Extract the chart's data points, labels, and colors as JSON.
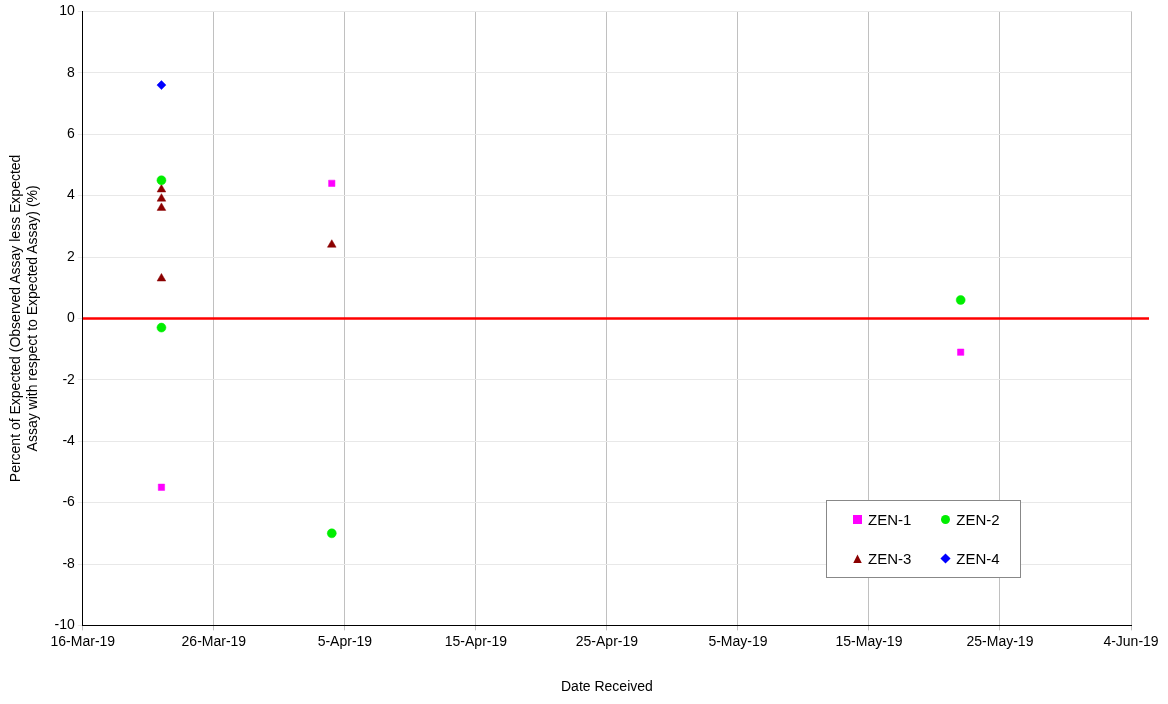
{
  "chart_data": {
    "type": "scatter",
    "xlabel": "Date Received",
    "ylabel": "Percent of Expected (Observed Assay less Expected Assay with respect to Expected Assay) (%)",
    "xlim": [
      "--03-16",
      "--06-04"
    ],
    "xticks": [
      {
        "value": "--03-16",
        "label": "16-Mar-19"
      },
      {
        "value": "--03-26",
        "label": "26-Mar-19"
      },
      {
        "value": "--04-05",
        "label": "5-Apr-19"
      },
      {
        "value": "--04-15",
        "label": "15-Apr-19"
      },
      {
        "value": "--04-25",
        "label": "25-Apr-19"
      },
      {
        "value": "--05-05",
        "label": "5-May-19"
      },
      {
        "value": "--05-15",
        "label": "15-May-19"
      },
      {
        "value": "--05-25",
        "label": "25-May-19"
      },
      {
        "value": "--06-04",
        "label": "4-Jun-19"
      }
    ],
    "ylim": [
      -10,
      10
    ],
    "yticks": [
      -10,
      -8,
      -6,
      -4,
      -2,
      0,
      2,
      4,
      6,
      8,
      10
    ],
    "grid": true,
    "legend": "bottom right",
    "ref_lines": [
      {
        "axis": "y",
        "value": 0,
        "color": "#ff0000"
      }
    ],
    "series": [
      {
        "name": "ZEN-1",
        "color": "#ff00ff",
        "marker": "square",
        "x": [
          "--03-22",
          "--04-04",
          "--05-22"
        ],
        "values": [
          -5.5,
          4.4,
          -1.1
        ]
      },
      {
        "name": "ZEN-2",
        "color": "#00ee00",
        "marker": "circle",
        "x": [
          "--03-22",
          "--03-22",
          "--04-04",
          "--05-22"
        ],
        "values": [
          4.5,
          -0.3,
          -7.0,
          0.6
        ]
      },
      {
        "name": "ZEN-3",
        "color": "#8b0000",
        "marker": "triangle",
        "x": [
          "--03-22",
          "--03-22",
          "--03-22",
          "--03-22",
          "--04-04"
        ],
        "values": [
          4.2,
          3.9,
          3.6,
          1.3,
          2.4
        ]
      },
      {
        "name": "ZEN-4",
        "color": "#0000ff",
        "marker": "diamond",
        "x": [
          "--03-22"
        ],
        "values": [
          7.6
        ]
      }
    ]
  }
}
